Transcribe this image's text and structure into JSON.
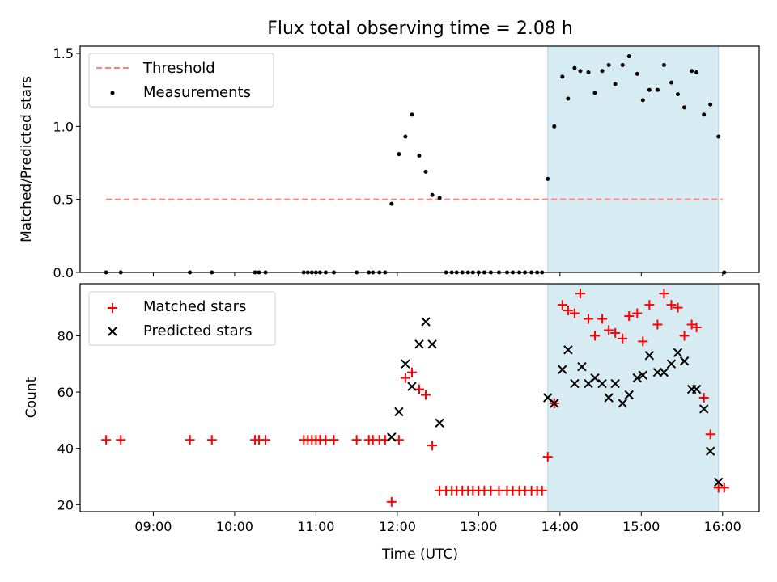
{
  "chart_data": [
    {
      "type": "scatter",
      "title": "Flux total observing time = 2.08 h",
      "xlabel": "",
      "ylabel": "Matched/Predicted stars",
      "xlim": [
        8.1,
        16.45
      ],
      "ylim": [
        0.0,
        1.55
      ],
      "yticks": [
        0.0,
        0.5,
        1.0,
        1.5
      ],
      "ytick_labels": [
        "0.0",
        "0.5",
        "1.0",
        "1.5"
      ],
      "legend": {
        "position": "top-left",
        "entries": [
          "Threshold",
          "Measurements"
        ]
      },
      "shaded_region": {
        "x": [
          13.85,
          15.95
        ],
        "color": "#add8e6"
      },
      "threshold": {
        "name": "Threshold",
        "y": 0.5,
        "x": [
          8.42,
          16.0
        ],
        "color": "#ff7f7f"
      },
      "series": [
        {
          "name": "Measurements",
          "color": "#000000",
          "x": [
            8.42,
            8.6,
            9.45,
            9.72,
            10.25,
            10.3,
            10.38,
            10.85,
            10.9,
            10.95,
            11.0,
            11.05,
            11.12,
            11.22,
            11.5,
            11.65,
            11.7,
            11.78,
            11.85,
            11.93,
            12.02,
            12.1,
            12.18,
            12.27,
            12.35,
            12.43,
            12.52,
            12.6,
            12.67,
            12.73,
            12.8,
            12.87,
            12.93,
            13.0,
            13.07,
            13.15,
            13.25,
            13.35,
            13.42,
            13.5,
            13.57,
            13.65,
            13.72,
            13.78,
            13.85,
            13.93,
            14.03,
            14.1,
            14.18,
            14.25,
            14.35,
            14.43,
            14.52,
            14.6,
            14.68,
            14.77,
            14.85,
            14.95,
            15.02,
            15.1,
            15.2,
            15.28,
            15.37,
            15.45,
            15.53,
            15.62,
            15.68,
            15.77,
            15.85,
            15.95,
            16.02
          ],
          "y": [
            0.0,
            0.0,
            0.0,
            0.0,
            0.0,
            0.0,
            0.0,
            0.0,
            0.0,
            0.0,
            0.0,
            0.0,
            0.0,
            0.0,
            0.0,
            0.0,
            0.0,
            0.0,
            0.0,
            0.47,
            0.81,
            0.93,
            1.08,
            0.8,
            0.69,
            0.53,
            0.51,
            0.0,
            0.0,
            0.0,
            0.0,
            0.0,
            0.0,
            0.0,
            0.0,
            0.0,
            0.0,
            0.0,
            0.0,
            0.0,
            0.0,
            0.0,
            0.0,
            0.0,
            0.64,
            1.0,
            1.34,
            1.19,
            1.4,
            1.38,
            1.37,
            1.23,
            1.38,
            1.42,
            1.29,
            1.42,
            1.48,
            1.36,
            1.18,
            1.25,
            1.25,
            1.42,
            1.3,
            1.22,
            1.13,
            1.38,
            1.37,
            1.08,
            1.15,
            0.93,
            0.0
          ]
        }
      ]
    },
    {
      "type": "scatter",
      "title": "",
      "xlabel": "Time (UTC)",
      "ylabel": "Count",
      "xlim": [
        8.1,
        16.45
      ],
      "ylim": [
        17.5,
        98.5
      ],
      "yticks": [
        20,
        40,
        60,
        80
      ],
      "ytick_labels": [
        "20",
        "40",
        "60",
        "80"
      ],
      "xticks": [
        9,
        10,
        11,
        12,
        13,
        14,
        15,
        16
      ],
      "xtick_labels": [
        "09:00",
        "10:00",
        "11:00",
        "12:00",
        "13:00",
        "14:00",
        "15:00",
        "16:00"
      ],
      "legend": {
        "position": "top-left",
        "entries": [
          "Matched stars",
          "Predicted stars"
        ]
      },
      "shaded_region": {
        "x": [
          13.85,
          15.95
        ],
        "color": "#add8e6"
      },
      "series": [
        {
          "name": "Matched stars",
          "marker": "plus",
          "color": "#ff0000",
          "x": [
            8.42,
            8.6,
            9.45,
            9.72,
            10.25,
            10.3,
            10.38,
            10.85,
            10.9,
            10.95,
            11.0,
            11.05,
            11.12,
            11.22,
            11.5,
            11.65,
            11.7,
            11.78,
            11.85,
            11.93,
            12.02,
            12.1,
            12.18,
            12.27,
            12.35,
            12.43,
            12.52,
            12.6,
            12.67,
            12.73,
            12.8,
            12.87,
            12.93,
            13.0,
            13.07,
            13.15,
            13.25,
            13.35,
            13.42,
            13.5,
            13.57,
            13.65,
            13.72,
            13.78,
            13.85,
            13.93,
            14.03,
            14.1,
            14.18,
            14.25,
            14.35,
            14.43,
            14.52,
            14.6,
            14.68,
            14.77,
            14.85,
            14.95,
            15.02,
            15.1,
            15.2,
            15.28,
            15.37,
            15.45,
            15.53,
            15.62,
            15.68,
            15.77,
            15.85,
            15.95,
            16.02
          ],
          "y": [
            43,
            43,
            43,
            43,
            43,
            43,
            43,
            43,
            43,
            43,
            43,
            43,
            43,
            43,
            43,
            43,
            43,
            43,
            43,
            21,
            43,
            65,
            67,
            61,
            59,
            41,
            25,
            25,
            25,
            25,
            25,
            25,
            25,
            25,
            25,
            25,
            25,
            25,
            25,
            25,
            25,
            25,
            25,
            25,
            37,
            56,
            91,
            89,
            88,
            95,
            86,
            80,
            86,
            82,
            81,
            79,
            87,
            88,
            78,
            91,
            84,
            95,
            91,
            90,
            80,
            84,
            83,
            58,
            45,
            26,
            26
          ]
        },
        {
          "name": "Predicted stars",
          "marker": "x",
          "color": "#000000",
          "x": [
            11.93,
            12.02,
            12.1,
            12.18,
            12.27,
            12.35,
            12.43,
            12.52,
            13.85,
            13.93,
            14.03,
            14.1,
            14.18,
            14.27,
            14.35,
            14.43,
            14.52,
            14.6,
            14.68,
            14.77,
            14.85,
            14.95,
            15.02,
            15.1,
            15.2,
            15.28,
            15.37,
            15.45,
            15.53,
            15.62,
            15.68,
            15.77,
            15.85,
            15.95
          ],
          "y": [
            44,
            53,
            70,
            62,
            77,
            85,
            77,
            49,
            58,
            56,
            68,
            75,
            63,
            69,
            63,
            65,
            63,
            58,
            63,
            56,
            59,
            65,
            66,
            73,
            67,
            67,
            70,
            74,
            71,
            61,
            61,
            54,
            39,
            28
          ]
        }
      ]
    }
  ]
}
